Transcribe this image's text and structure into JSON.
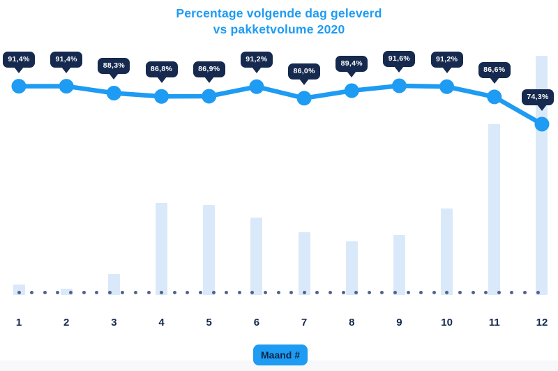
{
  "title": {
    "line1": "Percentage volgende dag geleverd",
    "line2": "vs pakketvolume 2020"
  },
  "x_axis": {
    "label": "Maand #",
    "ticks": [
      "1",
      "2",
      "3",
      "4",
      "5",
      "6",
      "7",
      "8",
      "9",
      "10",
      "11",
      "12"
    ]
  },
  "chart_data": {
    "type": "line+bar",
    "title": "Percentage volgende dag geleverd vs pakketvolume 2020",
    "xlabel": "Maand #",
    "categories": [
      1,
      2,
      3,
      4,
      5,
      6,
      7,
      8,
      9,
      10,
      11,
      12
    ],
    "series": [
      {
        "name": "Percentage volgende dag geleverd",
        "type": "line",
        "unit": "%",
        "values": [
          91.4,
          91.4,
          88.3,
          86.8,
          86.9,
          91.2,
          86.0,
          89.4,
          91.6,
          91.2,
          86.6,
          74.3
        ],
        "labels": [
          "91,4%",
          "91,4%",
          "88,3%",
          "86,8%",
          "86,9%",
          "91,2%",
          "86,0%",
          "89,4%",
          "91,6%",
          "91,2%",
          "86,6%",
          "74,3%"
        ]
      },
      {
        "name": "Pakketvolume 2020",
        "type": "bar",
        "unit": "relative to max month (estimated, no axis shown)",
        "values": [
          4.4,
          2.6,
          8.7,
          38.5,
          37.6,
          32.4,
          26.2,
          22.4,
          25.1,
          36.2,
          71.4,
          100
        ]
      }
    ],
    "ylim_line": [
      70,
      95
    ],
    "grid": false,
    "legend": "none",
    "baseline": "dotted"
  },
  "colors": {
    "accent_blue": "#1E9BF2",
    "tooltip_navy": "#16294E",
    "bar_light_blue": "#D9E9F9",
    "dot_slate": "#51628C",
    "tick_navy": "#142A52"
  }
}
